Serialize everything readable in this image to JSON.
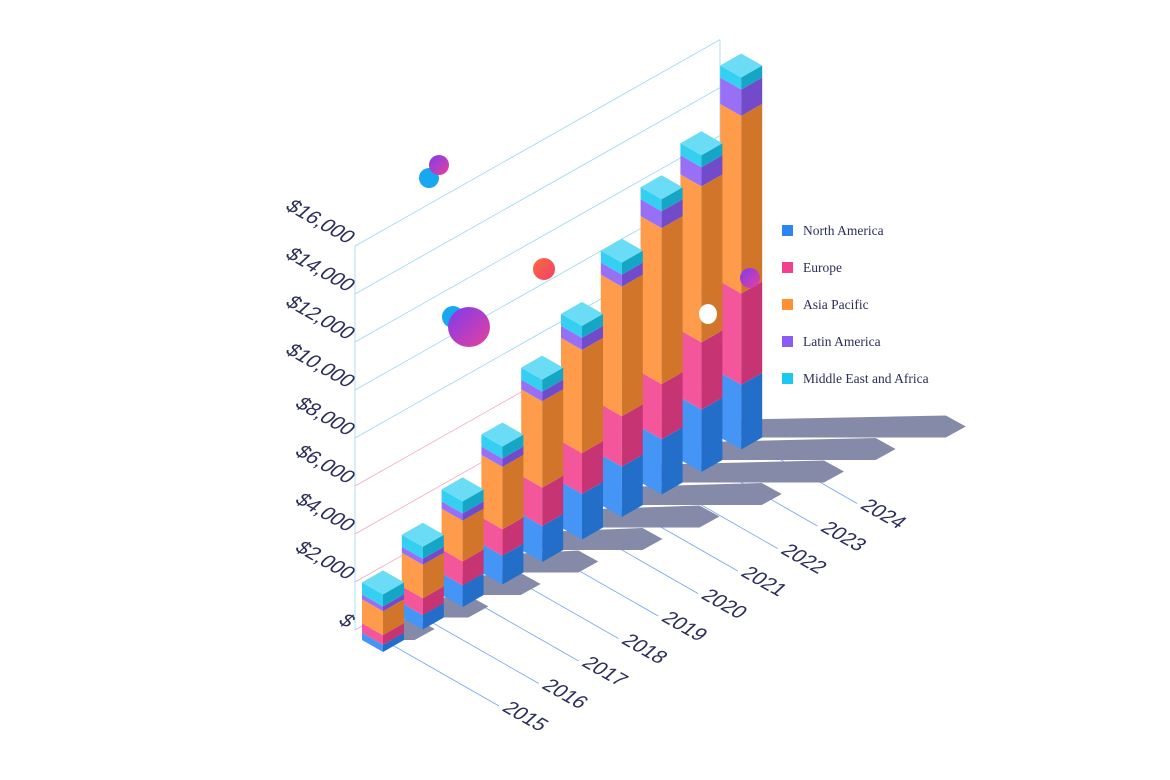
{
  "chart_data": {
    "type": "bar",
    "stacked": true,
    "style": "3d-isometric",
    "categories": [
      "2015",
      "2016",
      "2017",
      "2018",
      "2019",
      "2020",
      "2021",
      "2022",
      "2023",
      "2024"
    ],
    "y_tick_labels": [
      "$",
      "$2,000",
      "$4,000",
      "$6,000",
      "$8,000",
      "$10,000",
      "$12,000",
      "$14,000",
      "$16,000"
    ],
    "ylim": [
      0,
      16000
    ],
    "series": [
      {
        "name": "North America",
        "color": "#2b86f5",
        "values": [
          300,
          600,
          900,
          1200,
          1500,
          1900,
          2100,
          2300,
          2600,
          2700
        ]
      },
      {
        "name": "Europe",
        "color": "#f23f8e",
        "values": [
          400,
          700,
          1000,
          1100,
          1600,
          1700,
          2100,
          2300,
          2800,
          3800
        ]
      },
      {
        "name": "Asia Pacific",
        "color": "#ff8f33",
        "values": [
          1000,
          1400,
          1700,
          2600,
          3600,
          4300,
          5400,
          6500,
          6500,
          7400
        ]
      },
      {
        "name": "Latin America",
        "color": "#8a5cf5",
        "values": [
          200,
          250,
          300,
          350,
          400,
          500,
          500,
          700,
          800,
          1100
        ]
      },
      {
        "name": "Middle East and Africa",
        "color": "#19c9f0",
        "values": [
          500,
          500,
          500,
          500,
          500,
          500,
          500,
          500,
          500,
          500
        ]
      }
    ],
    "legend_position": "right",
    "grid": true
  }
}
